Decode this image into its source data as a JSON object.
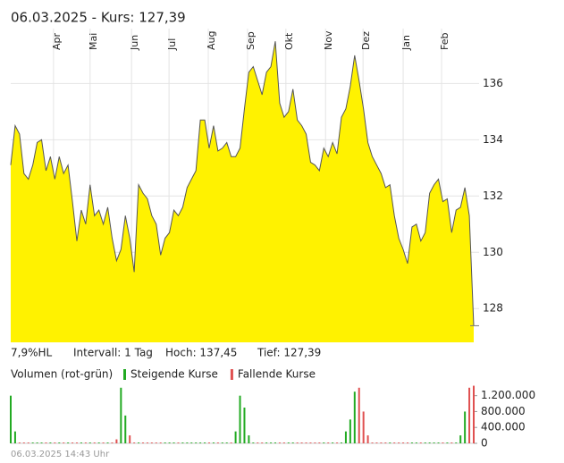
{
  "chart_data": [
    {
      "type": "area",
      "title": "06.03.2025  -  Kurs: 127,39",
      "color": "#fff200",
      "line_color": "#555555",
      "annotations": [
        "7,9%HL",
        "Intervall: 1 Tag",
        "Hoch: 137,45",
        "Tief: 127,39"
      ],
      "values": [
        133.1,
        134.5,
        134.2,
        132.8,
        132.6,
        133.1,
        133.9,
        134.0,
        132.9,
        133.4,
        132.6,
        133.4,
        132.8,
        133.1,
        131.8,
        130.4,
        131.5,
        131.0,
        132.4,
        131.3,
        131.5,
        131.0,
        131.6,
        130.5,
        129.7,
        130.1,
        131.3,
        130.5,
        129.3,
        132.4,
        132.1,
        131.9,
        131.3,
        131.0,
        129.9,
        130.5,
        130.7,
        131.5,
        131.3,
        131.6,
        132.3,
        132.6,
        132.9,
        134.7,
        134.7,
        133.7,
        134.5,
        133.6,
        133.7,
        133.9,
        133.4,
        133.4,
        133.7,
        135.1,
        136.4,
        136.6,
        136.1,
        135.6,
        136.4,
        136.6,
        137.5,
        135.3,
        134.8,
        135.0,
        135.8,
        134.7,
        134.5,
        134.2,
        133.2,
        133.1,
        132.9,
        133.7,
        133.4,
        133.9,
        133.5,
        134.8,
        135.1,
        135.9,
        137.0,
        136.1,
        135.1,
        133.9,
        133.4,
        133.1,
        132.8,
        132.3,
        132.4,
        131.3,
        130.5,
        130.1,
        129.6,
        130.9,
        131.0,
        130.4,
        130.7,
        132.1,
        132.4,
        132.6,
        131.8,
        131.9,
        130.7,
        131.5,
        131.6,
        132.3,
        131.3,
        127.39
      ],
      "xlim": [
        0,
        105
      ],
      "xticks": [
        {
          "value": 9.7,
          "label": "Apr"
        },
        {
          "value": 18.0,
          "label": "Mai"
        },
        {
          "value": 27.4,
          "label": "Jun"
        },
        {
          "value": 35.9,
          "label": "Jul"
        },
        {
          "value": 44.8,
          "label": "Aug"
        },
        {
          "value": 53.7,
          "label": "Sep"
        },
        {
          "value": 62.4,
          "label": "Okt"
        },
        {
          "value": 71.4,
          "label": "Nov"
        },
        {
          "value": 79.9,
          "label": "Dez"
        },
        {
          "value": 89.0,
          "label": "Jan"
        },
        {
          "value": 97.7,
          "label": "Feb"
        }
      ],
      "ylim": [
        126.8,
        137.95
      ],
      "yticks": [
        128,
        130,
        132,
        134,
        136
      ],
      "grid": true
    },
    {
      "type": "bar",
      "title": "Volumen (rot-grün)",
      "stacked": false,
      "xlim": [
        0,
        105
      ],
      "ylim": [
        0,
        1440000
      ],
      "yticks": [
        0,
        {
          "value": 400000,
          "label": "400.000"
        },
        {
          "value": 800000,
          "label": "800.000"
        },
        {
          "value": 1200000,
          "label": "1.200.000"
        }
      ],
      "series": [
        {
          "name": "Steigende Kurse",
          "color": "#22aa22",
          "values": [
            1200000,
            300000,
            null,
            null,
            null,
            20000,
            20000,
            20000,
            null,
            20000,
            null,
            20000,
            null,
            20000,
            null,
            null,
            20000,
            null,
            20000,
            null,
            20000,
            null,
            20000,
            null,
            null,
            1400000,
            700000,
            null,
            null,
            20000,
            null,
            null,
            null,
            null,
            null,
            20000,
            20000,
            20000,
            null,
            20000,
            20000,
            20000,
            20000,
            20000,
            20000,
            null,
            20000,
            null,
            20000,
            20000,
            null,
            300000,
            1200000,
            900000,
            200000,
            20000,
            null,
            null,
            20000,
            20000,
            20000,
            null,
            null,
            20000,
            20000,
            null,
            null,
            null,
            null,
            null,
            null,
            20000,
            null,
            20000,
            null,
            20000,
            300000,
            600000,
            1300000,
            null,
            null,
            null,
            null,
            null,
            null,
            null,
            20000,
            null,
            null,
            null,
            null,
            20000,
            20000,
            null,
            20000,
            20000,
            20000,
            20000,
            null,
            20000,
            null,
            20000,
            200000,
            800000,
            null,
            null
          ]
        },
        {
          "name": "Fallende Kurse",
          "color": "#e05050",
          "values": [
            null,
            null,
            20000,
            20000,
            20000,
            null,
            null,
            null,
            20000,
            null,
            20000,
            null,
            20000,
            null,
            20000,
            20000,
            null,
            20000,
            null,
            20000,
            null,
            20000,
            null,
            20000,
            100000,
            null,
            null,
            200000,
            20000,
            null,
            20000,
            20000,
            20000,
            20000,
            20000,
            null,
            null,
            null,
            20000,
            null,
            null,
            null,
            null,
            null,
            null,
            20000,
            null,
            20000,
            null,
            null,
            20000,
            null,
            null,
            null,
            null,
            null,
            20000,
            20000,
            null,
            null,
            null,
            20000,
            20000,
            null,
            null,
            20000,
            20000,
            20000,
            20000,
            20000,
            20000,
            null,
            20000,
            null,
            20000,
            null,
            null,
            null,
            null,
            1400000,
            800000,
            200000,
            20000,
            20000,
            20000,
            20000,
            null,
            20000,
            20000,
            20000,
            20000,
            null,
            null,
            20000,
            null,
            null,
            null,
            null,
            20000,
            null,
            20000,
            null,
            null,
            null,
            1400000,
            1450000
          ]
        }
      ]
    }
  ],
  "footer": "06.03.2025 14:43 Uhr"
}
